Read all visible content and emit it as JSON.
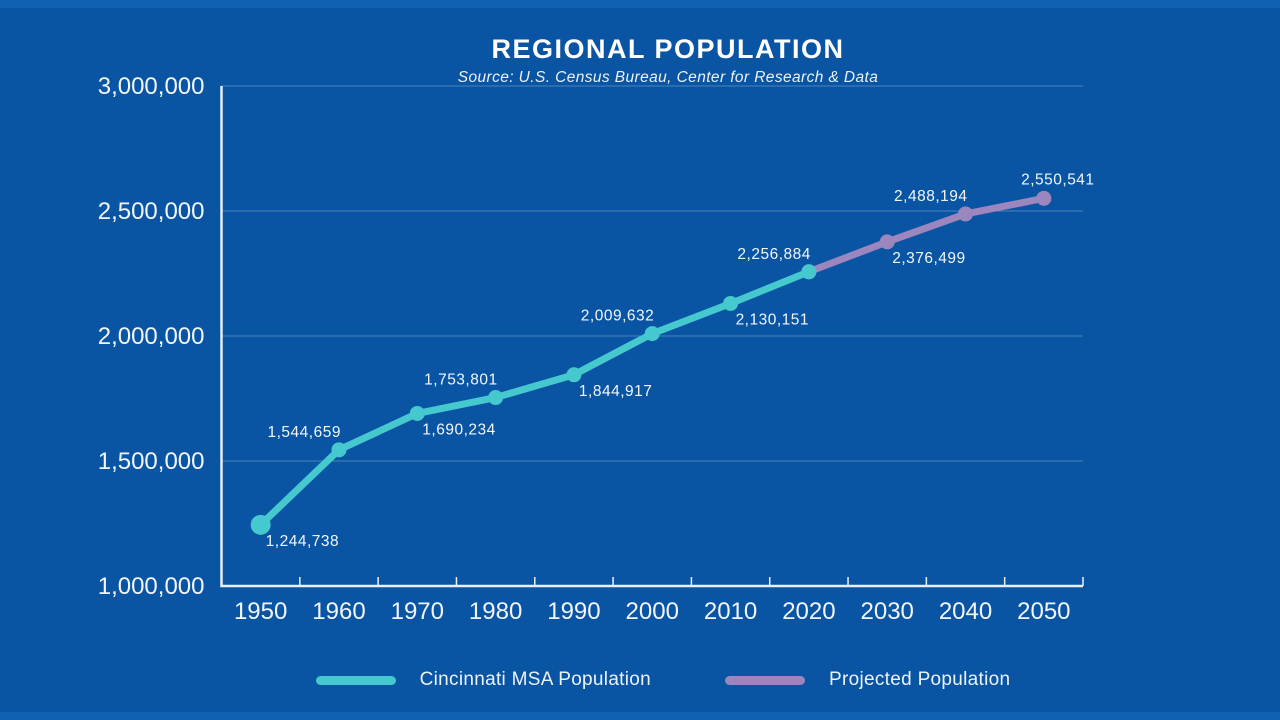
{
  "page": {
    "title": "REGIONAL POPULATION",
    "subtitle": "Source: U.S. Census Bureau, Center for Research & Data"
  },
  "colors": {
    "background": "#0955A4",
    "edge_strip": "#1161B1",
    "axis": "#E9EFF6",
    "gridline": "rgba(233,239,246,0.3)",
    "series_actual": "#46C8CF",
    "series_projected": "#9C86BE",
    "data_label_text": "#E8F0F8",
    "axis_tick_text": "#F2F6FB"
  },
  "chart_data": {
    "type": "line",
    "title": "REGIONAL POPULATION",
    "subtitle": "Source: U.S. Census Bureau, Center for Research & Data",
    "categories": [
      1950,
      1960,
      1970,
      1980,
      1990,
      2000,
      2010,
      2020,
      2030,
      2040,
      2050
    ],
    "ylim": [
      1000000,
      3000000
    ],
    "grid": true,
    "legend_position": "bottom",
    "y_ticks": [
      {
        "value": 3000000,
        "label": "3,000,000"
      },
      {
        "value": 2500000,
        "label": "2,500,000"
      },
      {
        "value": 2000000,
        "label": "2,000,000"
      },
      {
        "value": 1500000,
        "label": "1,500,000"
      },
      {
        "value": 1000000,
        "label": "1,000,000"
      }
    ],
    "series": [
      {
        "name": "Cincinnati MSA Population",
        "color": "#46C8CF",
        "x": [
          1950,
          1960,
          1970,
          1980,
          1990,
          2000,
          2010,
          2020
        ],
        "values": [
          1244738,
          1544659,
          1690234,
          1753801,
          1844917,
          2009632,
          2130151,
          2256884
        ]
      },
      {
        "name": "Projected Population",
        "color": "#9C86BE",
        "x": [
          2020,
          2030,
          2040,
          2050
        ],
        "values": [
          2256884,
          2376499,
          2488194,
          2550541
        ]
      }
    ],
    "point_labels": [
      {
        "year": 1950,
        "text": "1,244,738",
        "pos": "below"
      },
      {
        "year": 1960,
        "text": "1,544,659",
        "pos": "above"
      },
      {
        "year": 1970,
        "text": "1,690,234",
        "pos": "below"
      },
      {
        "year": 1980,
        "text": "1,753,801",
        "pos": "above"
      },
      {
        "year": 1990,
        "text": "1,844,917",
        "pos": "below"
      },
      {
        "year": 2000,
        "text": "2,009,632",
        "pos": "above"
      },
      {
        "year": 2010,
        "text": "2,130,151",
        "pos": "below"
      },
      {
        "year": 2020,
        "text": "2,256,884",
        "pos": "above"
      },
      {
        "year": 2030,
        "text": "2,376,499",
        "pos": "below"
      },
      {
        "year": 2040,
        "text": "2,488,194",
        "pos": "above"
      },
      {
        "year": 2050,
        "text": "2,550,541",
        "pos": "above-center"
      }
    ]
  },
  "legend": {
    "items": [
      {
        "label": "Cincinnati MSA Population",
        "color": "#46C8CF"
      },
      {
        "label": "Projected Population",
        "color": "#9C86BE"
      }
    ]
  }
}
